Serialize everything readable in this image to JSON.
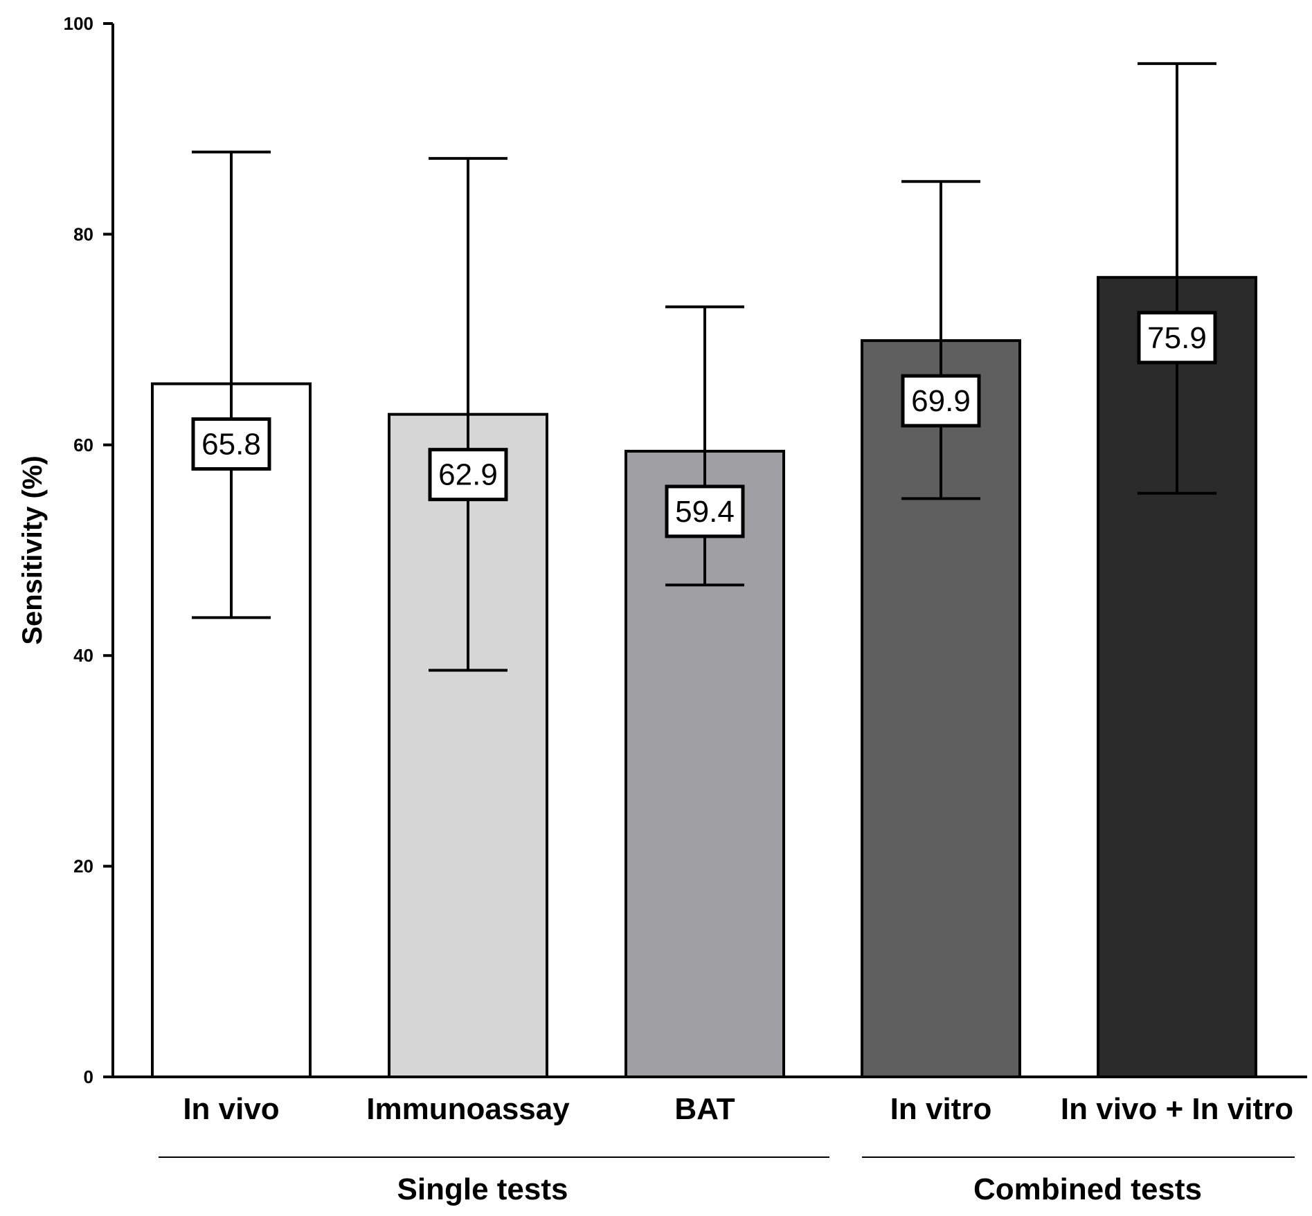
{
  "chart_data": {
    "type": "bar",
    "title": "",
    "xlabel": "",
    "ylabel": "Sensitivity (%)",
    "ylim": [
      0,
      100
    ],
    "yticks": [
      0,
      20,
      40,
      60,
      80,
      100
    ],
    "grid": false,
    "categories": [
      "In vivo",
      "Immunoassay",
      "BAT",
      "In vitro",
      "In vivo + In vitro"
    ],
    "values": [
      65.8,
      62.9,
      59.4,
      69.9,
      75.9
    ],
    "value_labels": [
      "65.8",
      "62.9",
      "59.4",
      "69.9",
      "75.9"
    ],
    "error_low": [
      43.6,
      38.6,
      46.7,
      54.9,
      55.4
    ],
    "error_high": [
      87.8,
      87.2,
      73.1,
      85.0,
      96.2
    ],
    "colors": [
      "#ffffff",
      "#d6d6d6",
      "#a0a0a4",
      "#5f5f5f",
      "#2b2b2b"
    ],
    "groups": [
      {
        "label": "Single tests",
        "categories": [
          "In vivo",
          "Immunoassay",
          "BAT"
        ]
      },
      {
        "label": "Combined tests",
        "categories": [
          "In vitro",
          "In vivo + In vitro"
        ]
      }
    ]
  }
}
